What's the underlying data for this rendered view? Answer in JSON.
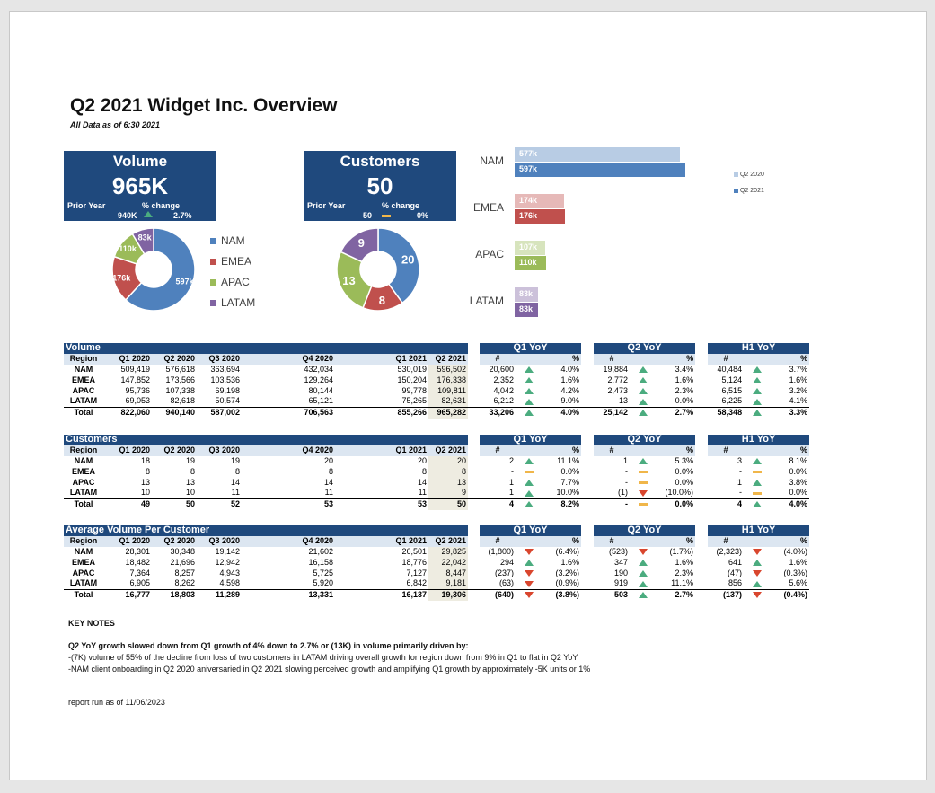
{
  "header": {
    "title": "Q2 2021 Widget Inc. Overview",
    "subtitle": "All Data as of 6:30 2021"
  },
  "kpi_volume": {
    "label": "Volume",
    "value": "965K",
    "prior_label": "Prior Year",
    "pct_label": "% change",
    "prior_value": "940K",
    "trend": "up",
    "pct_value": "2.7%"
  },
  "kpi_customers": {
    "label": "Customers",
    "value": "50",
    "prior_label": "Prior Year",
    "pct_label": "% change",
    "prior_value": "50",
    "trend": "flat",
    "pct_value": "0%"
  },
  "donut_volume": {
    "labels": [
      "NAM",
      "EMEA",
      "APAC",
      "LATAM"
    ],
    "values": [
      597,
      176,
      110,
      83
    ],
    "value_labels": [
      "597k",
      "176k",
      "110k",
      "83k"
    ],
    "colors": [
      "#4f81bd",
      "#c0504d",
      "#9bbb59",
      "#8064a2"
    ]
  },
  "donut_customers": {
    "labels": [
      "NAM",
      "EMEA",
      "APAC",
      "LATAM"
    ],
    "values": [
      20,
      8,
      13,
      9
    ],
    "value_labels": [
      "20",
      "8",
      "13",
      "9"
    ],
    "colors": [
      "#4f81bd",
      "#c0504d",
      "#9bbb59",
      "#8064a2"
    ]
  },
  "donut_legend": [
    {
      "label": "NAM",
      "color": "#4f81bd"
    },
    {
      "label": "EMEA",
      "color": "#c0504d"
    },
    {
      "label": "APAC",
      "color": "#9bbb59"
    },
    {
      "label": "LATAM",
      "color": "#8064a2"
    }
  ],
  "chart_data": [
    {
      "type": "pie",
      "variant": "donut",
      "categories": [
        "NAM",
        "EMEA",
        "APAC",
        "LATAM"
      ],
      "values": [
        597,
        176,
        110,
        83
      ],
      "data_labels": [
        "597k",
        "176k",
        "110k",
        "83k"
      ]
    },
    {
      "type": "pie",
      "variant": "donut",
      "categories": [
        "NAM",
        "EMEA",
        "APAC",
        "LATAM"
      ],
      "values": [
        20,
        8,
        13,
        9
      ],
      "data_labels": [
        "20",
        "8",
        "13",
        "9"
      ]
    },
    {
      "type": "bar",
      "orientation": "horizontal",
      "categories": [
        "NAM",
        "EMEA",
        "APAC",
        "LATAM"
      ],
      "series": [
        {
          "name": "Q2 2020",
          "values": [
            577,
            174,
            107,
            83
          ],
          "data_labels": [
            "577k",
            "174k",
            "107k",
            "83k"
          ]
        },
        {
          "name": "Q2 2021",
          "values": [
            597,
            176,
            110,
            83
          ],
          "data_labels": [
            "597k",
            "176k",
            "110k",
            "83k"
          ]
        }
      ],
      "legend": "right"
    }
  ],
  "bar_colors": [
    [
      "#b8cce4",
      "#4f81bd"
    ],
    [
      "#e6b9b8",
      "#c0504d"
    ],
    [
      "#d7e4bd",
      "#9bbb59"
    ],
    [
      "#ccc1da",
      "#8064a2"
    ]
  ],
  "tables": [
    {
      "title": "Volume",
      "region_label": "Region",
      "columns": [
        "Q1 2020",
        "Q2 2020",
        "Q3 2020",
        "Q4 2020",
        "Q1 2021",
        "Q2 2021"
      ],
      "yoy_titles": [
        "Q1 YoY",
        "Q2 YoY",
        "H1 YoY"
      ],
      "num_label": "#",
      "pct_label": "%",
      "rows": [
        {
          "region": "NAM",
          "vals": [
            "509,419",
            "576,618",
            "363,694",
            "432,034",
            "530,019",
            "596,502"
          ],
          "q1": [
            "20,600",
            "up",
            "4.0%"
          ],
          "q2": [
            "19,884",
            "up",
            "3.4%"
          ],
          "h1": [
            "40,484",
            "up",
            "3.7%"
          ]
        },
        {
          "region": "EMEA",
          "vals": [
            "147,852",
            "173,566",
            "103,536",
            "129,264",
            "150,204",
            "176,338"
          ],
          "q1": [
            "2,352",
            "up",
            "1.6%"
          ],
          "q2": [
            "2,772",
            "up",
            "1.6%"
          ],
          "h1": [
            "5,124",
            "up",
            "1.6%"
          ]
        },
        {
          "region": "APAC",
          "vals": [
            "95,736",
            "107,338",
            "69,198",
            "80,144",
            "99,778",
            "109,811"
          ],
          "q1": [
            "4,042",
            "up",
            "4.2%"
          ],
          "q2": [
            "2,473",
            "up",
            "2.3%"
          ],
          "h1": [
            "6,515",
            "up",
            "3.2%"
          ]
        },
        {
          "region": "LATAM",
          "vals": [
            "69,053",
            "82,618",
            "50,574",
            "65,121",
            "75,265",
            "82,631"
          ],
          "q1": [
            "6,212",
            "up",
            "9.0%"
          ],
          "q2": [
            "13",
            "up",
            "0.0%"
          ],
          "h1": [
            "6,225",
            "up",
            "4.1%"
          ]
        }
      ],
      "total": {
        "region": "Total",
        "vals": [
          "822,060",
          "940,140",
          "587,002",
          "706,563",
          "855,266",
          "965,282"
        ],
        "q1": [
          "33,206",
          "up",
          "4.0%"
        ],
        "q2": [
          "25,142",
          "up",
          "2.7%"
        ],
        "h1": [
          "58,348",
          "up",
          "3.3%"
        ]
      }
    },
    {
      "title": "Customers",
      "region_label": "Region",
      "columns": [
        "Q1 2020",
        "Q2 2020",
        "Q3 2020",
        "Q4 2020",
        "Q1 2021",
        "Q2 2021"
      ],
      "yoy_titles": [
        "Q1 YoY",
        "Q2 YoY",
        "H1 YoY"
      ],
      "num_label": "#",
      "pct_label": "%",
      "rows": [
        {
          "region": "NAM",
          "vals": [
            "18",
            "19",
            "19",
            "20",
            "20",
            "20"
          ],
          "q1": [
            "2",
            "up",
            "11.1%"
          ],
          "q2": [
            "1",
            "up",
            "5.3%"
          ],
          "h1": [
            "3",
            "up",
            "8.1%"
          ]
        },
        {
          "region": "EMEA",
          "vals": [
            "8",
            "8",
            "8",
            "8",
            "8",
            "8"
          ],
          "q1": [
            "-",
            "flat",
            "0.0%"
          ],
          "q2": [
            "-",
            "flat",
            "0.0%"
          ],
          "h1": [
            "-",
            "flat",
            "0.0%"
          ]
        },
        {
          "region": "APAC",
          "vals": [
            "13",
            "13",
            "14",
            "14",
            "14",
            "13"
          ],
          "q1": [
            "1",
            "up",
            "7.7%"
          ],
          "q2": [
            "-",
            "flat",
            "0.0%"
          ],
          "h1": [
            "1",
            "up",
            "3.8%"
          ]
        },
        {
          "region": "LATAM",
          "vals": [
            "10",
            "10",
            "11",
            "11",
            "11",
            "9"
          ],
          "q1": [
            "1",
            "up",
            "10.0%"
          ],
          "q2": [
            "(1)",
            "down",
            "(10.0%)"
          ],
          "h1": [
            "-",
            "flat",
            "0.0%"
          ]
        }
      ],
      "total": {
        "region": "Total",
        "vals": [
          "49",
          "50",
          "52",
          "53",
          "53",
          "50"
        ],
        "q1": [
          "4",
          "up",
          "8.2%"
        ],
        "q2": [
          "-",
          "flat",
          "0.0%"
        ],
        "h1": [
          "4",
          "up",
          "4.0%"
        ]
      }
    },
    {
      "title": "Average Volume Per Customer",
      "region_label": "Region",
      "columns": [
        "Q1 2020",
        "Q2 2020",
        "Q3 2020",
        "Q4 2020",
        "Q1 2021",
        "Q2 2021"
      ],
      "yoy_titles": [
        "Q1 YoY",
        "Q2 YoY",
        "H1 YoY"
      ],
      "num_label": "#",
      "pct_label": "%",
      "rows": [
        {
          "region": "NAM",
          "vals": [
            "28,301",
            "30,348",
            "19,142",
            "21,602",
            "26,501",
            "29,825"
          ],
          "q1": [
            "(1,800)",
            "down",
            "(6.4%)"
          ],
          "q2": [
            "(523)",
            "down",
            "(1.7%)"
          ],
          "h1": [
            "(2,323)",
            "down",
            "(4.0%)"
          ]
        },
        {
          "region": "EMEA",
          "vals": [
            "18,482",
            "21,696",
            "12,942",
            "16,158",
            "18,776",
            "22,042"
          ],
          "q1": [
            "294",
            "up",
            "1.6%"
          ],
          "q2": [
            "347",
            "up",
            "1.6%"
          ],
          "h1": [
            "641",
            "up",
            "1.6%"
          ]
        },
        {
          "region": "APAC",
          "vals": [
            "7,364",
            "8,257",
            "4,943",
            "5,725",
            "7,127",
            "8,447"
          ],
          "q1": [
            "(237)",
            "down",
            "(3.2%)"
          ],
          "q2": [
            "190",
            "up",
            "2.3%"
          ],
          "h1": [
            "(47)",
            "down",
            "(0.3%)"
          ]
        },
        {
          "region": "LATAM",
          "vals": [
            "6,905",
            "8,262",
            "4,598",
            "5,920",
            "6,842",
            "9,181"
          ],
          "q1": [
            "(63)",
            "down",
            "(0.9%)"
          ],
          "q2": [
            "919",
            "up",
            "11.1%"
          ],
          "h1": [
            "856",
            "up",
            "5.6%"
          ]
        }
      ],
      "total": {
        "region": "Total",
        "vals": [
          "16,777",
          "18,803",
          "11,289",
          "13,331",
          "16,137",
          "19,306"
        ],
        "q1": [
          "(640)",
          "down",
          "(3.8%)"
        ],
        "q2": [
          "503",
          "up",
          "2.7%"
        ],
        "h1": [
          "(137)",
          "down",
          "(0.4%)"
        ]
      }
    }
  ],
  "notes": {
    "heading": "KEY NOTES",
    "bold_line": "Q2 YoY growth slowed down from Q1 growth of 4% down to 2.7% or (13K) in volume primarily driven by:",
    "lines": [
      "-(7K) volume of 55% of the decline from loss of two customers in LATAM driving overall growth for region down from 9% in Q1 to flat in Q2 YoY",
      "-NAM client onboarding in Q2 2020 aniversaried in Q2 2021 slowing perceived growth and amplifying Q1 growth by approximately -5K units or 1%"
    ],
    "report_run": "report run as of  11/06/2023"
  }
}
